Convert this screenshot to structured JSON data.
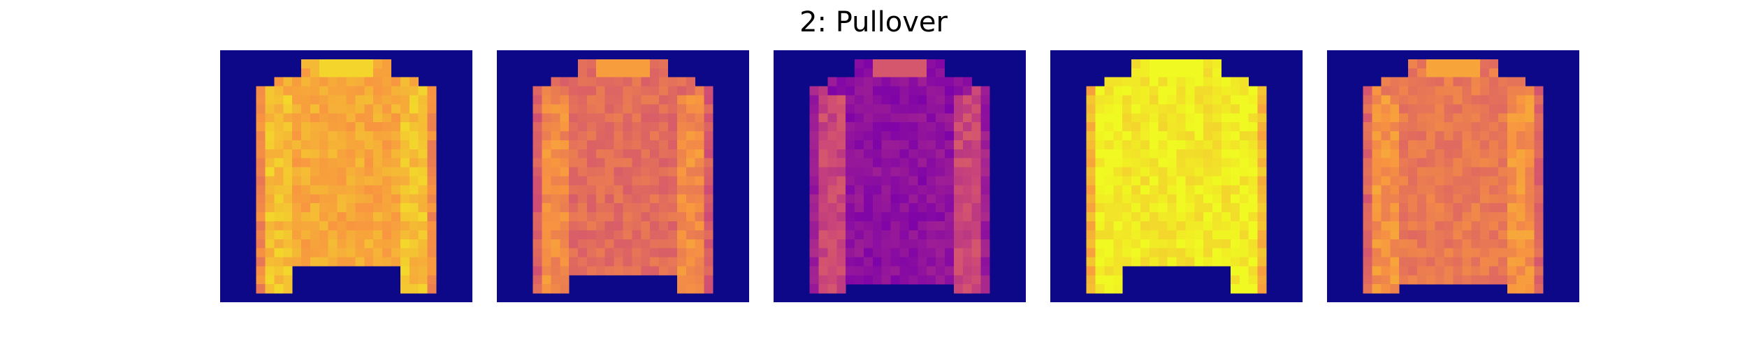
{
  "title": "2: Pullover",
  "colors": {
    "background": "#0d0887",
    "colormap": "plasma"
  },
  "panels": [
    {
      "name": "pullover-image-1",
      "torso": 0.8,
      "sleeve": 0.86,
      "torso_len": 0.83
    },
    {
      "name": "pullover-image-2",
      "torso": 0.62,
      "sleeve": 0.72,
      "torso_len": 0.86
    },
    {
      "name": "pullover-image-3",
      "torso": 0.3,
      "sleeve": 0.5,
      "torso_len": 0.92
    },
    {
      "name": "pullover-image-4",
      "torso": 0.96,
      "sleeve": 0.98,
      "torso_len": 0.85
    },
    {
      "name": "pullover-image-5",
      "torso": 0.66,
      "sleeve": 0.74,
      "torso_len": 0.92
    }
  ]
}
